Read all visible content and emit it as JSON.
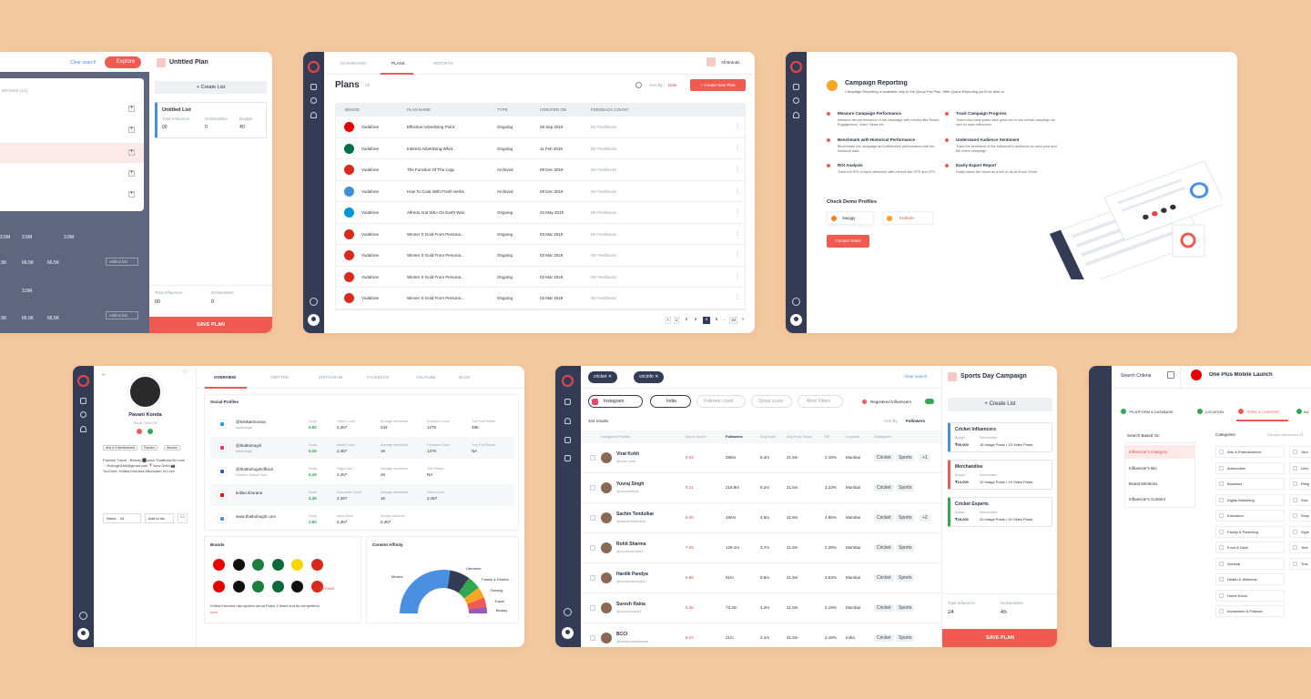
{
  "colors": {
    "bg": "#f5c9a0",
    "accent": "#f05a50",
    "sidebar": "#343b55",
    "green": "#2fa84f"
  },
  "card1": {
    "clear": "Clear search",
    "explore": "Explore",
    "plan_title": "Untitled Plan",
    "create_list": "+ Create List",
    "brands_header": "BRANDS (12)",
    "list": {
      "name": "Untitled List",
      "l1": "Total Influencer",
      "l2": "Deliverables",
      "l3": "Budget",
      "v1": "00",
      "v2": "0",
      "v3": "₹0"
    },
    "stats": {
      "a": "3.5M",
      "b": "3.5M",
      "c": "3.5M",
      "d": "3.5M",
      "e": ".5K",
      "f": "66.5K",
      "g": "66.5K",
      "h": ".5K",
      "i": "66.5K",
      "j": "66.5K"
    },
    "addlist": "Add to list",
    "footer": {
      "l1": "Total Influencer",
      "l2": "Deliverables",
      "v1": "00",
      "v2": "0"
    },
    "save": "SAVE PLAN"
  },
  "card2": {
    "tabs": [
      "DASHBOARD",
      "PLANS",
      "REPORTS"
    ],
    "brand_select": "All Brands",
    "title": "Plans",
    "filter": "All",
    "sort_label": "Sort By :",
    "sort_value": "Date",
    "create": "+ Create New Plan",
    "headers": [
      "BRAND",
      "PLAN NAME",
      "TYPE",
      "CREATED ON",
      "FEEDBACK COUNT"
    ],
    "rows": [
      {
        "brand": "Vodafone",
        "plan": "Effective Advertising Point",
        "type": "Ongoing",
        "date": "08 Sep 2019",
        "fb": "06 Feedbacks",
        "logo": "#e60000"
      },
      {
        "brand": "Vodafone",
        "plan": "Interest Advertising What...",
        "type": "Ongoing",
        "date": "11 Feb 2019",
        "fb": "06 Feedbacks",
        "logo": "#00704a"
      },
      {
        "brand": "Vodafone",
        "plan": "The Function Of The Logo",
        "type": "Archived",
        "date": "09 Dec 2019",
        "fb": "06 Feedbacks",
        "logo": "#da291c"
      },
      {
        "brand": "Vodafone",
        "plan": "How To Cook With Fresh Herbs",
        "type": "Archived",
        "date": "09 Dec 2019",
        "fb": "06 Feedbacks",
        "logo": "#3d8fd8"
      },
      {
        "brand": "Vodafone",
        "plan": "Alfredo And Who On Earth Was",
        "type": "Ongoing",
        "date": "22 May 2019",
        "fb": "06 Feedbacks",
        "logo": "#0096d6"
      },
      {
        "brand": "Vodafone",
        "plan": "Winner S Gold From Persona...",
        "type": "Ongoing",
        "date": "03 Mar 2019",
        "fb": "06 Feedbacks",
        "logo": "#da291c"
      },
      {
        "brand": "Vodafone",
        "plan": "Winner S Gold From Persona...",
        "type": "Ongoing",
        "date": "03 Mar 2019",
        "fb": "06 Feedbacks",
        "logo": "#da291c"
      },
      {
        "brand": "Vodafone",
        "plan": "Winner S Gold From Persona...",
        "type": "Ongoing",
        "date": "03 Mar 2019",
        "fb": "06 Feedbacks",
        "logo": "#da291c"
      },
      {
        "brand": "Vodafone",
        "plan": "Winner S Gold From Persona...",
        "type": "Ongoing",
        "date": "03 Mar 2019",
        "fb": "06 Feedbacks",
        "logo": "#da291c"
      }
    ],
    "pages": [
      "<",
      "1",
      "2",
      "3",
      "4",
      "5",
      "...",
      "10",
      ">"
    ]
  },
  "card3": {
    "title": "Campaign Reporting",
    "subtitle": "Campaign Reporting is available only in the Qoruz Pro Plan. With Qoruz Reporting you'll be able to",
    "features": [
      {
        "t": "Measure Campaign Performance",
        "d": "Measure the performance of the campaign with metrics like Reach, Engagement, Video Views etc"
      },
      {
        "t": "Track Campaign Progress",
        "d": "Track how many posts have gone live in the overall campaign as well for each influencer"
      },
      {
        "t": "Benchmark with Historical Performance",
        "d": "Benchmark the campaign and influencers performance with the historical data"
      },
      {
        "t": "Understand Audience Sentiment",
        "d": "Track the sentiment of the influencer's audience on each post and the entire campaign"
      },
      {
        "t": "ROI Analysis",
        "d": "Track the ROI of each influencer with metrics like CPE and CPV"
      },
      {
        "t": "Easily Export Report",
        "d": "Easily share the report as a link or as an Excel Sheet"
      }
    ],
    "demo": "Check Demo Profiles",
    "p1": "Swiggy",
    "p2": "Kurkure",
    "contact": "Contact Sales"
  },
  "card4": {
    "name": "Pavani Konda",
    "loc": "Surat, Delhi IN",
    "chips": [
      "Arts & Entertainment",
      "Fashion",
      "Women"
    ],
    "bio": "Fashion Travel - Beauty ⬛www.ThatBohoGirl.com ✉️Bohogirl1fall@gmail.com 📍New Delhi 📷YouTube: Kritika Khurana #Bohofam In Love",
    "notes": "Notes",
    "notes_count": "34",
    "addlist": "Add to list",
    "tabs": [
      "OVERVIEW",
      "TWITTER",
      "INSTAGRAM",
      "FACEBOOK",
      "YOUTUBE",
      "BLOG"
    ],
    "social_title": "Social Profiles",
    "profiles": [
      {
        "net": "twitter",
        "h": "@kritikakhurana",
        "s": "thatbohogirl",
        "l1": "Score",
        "v1": "6.82",
        "l2": "Tweet Count",
        "v2": "2,467",
        "l3": "Average Interaction",
        "v3": "234",
        "l4": "Followers Count",
        "v4": "127K",
        "l5": "True Post Reach",
        "v5": "48K"
      },
      {
        "net": "instagram",
        "h": "@thatbohogirl",
        "s": "thatbohogirl",
        "l1": "Score",
        "v1": "6.25",
        "l2": "Media Count",
        "v2": "2,467",
        "l3": "Average Interaction",
        "v3": "1K",
        "l4": "Followers Count",
        "v4": "127K",
        "l5": "True Post Reach",
        "v5": "NA"
      },
      {
        "net": "facebook",
        "h": "@thatbohogirlofficial",
        "s": "Reliance Mutual Fund",
        "l1": "Score",
        "v1": "6.25",
        "l2": "Page Likes",
        "v2": "2,467",
        "l3": "Average Interaction",
        "v3": "2K",
        "l4": "True Reach",
        "v4": "NA",
        "l5": "",
        "v5": ""
      },
      {
        "net": "youtube",
        "h": "kritika khurana",
        "s": "",
        "l1": "Score",
        "v1": "4.35",
        "l2": "Subscriber Count",
        "v2": "2,467",
        "l3": "Average Interaction",
        "v3": "1K",
        "l4": "Video Count",
        "v4": "2,467",
        "l5": "",
        "v5": ""
      },
      {
        "net": "blog",
        "h": "www.thatbohogirl.com",
        "s": "",
        "l1": "Score",
        "v1": "2.80",
        "l2": "Alexa Rank",
        "v2": "2,467",
        "l3": "Domain Authority",
        "v3": "2,467",
        "l4": "",
        "v4": "",
        "l5": "",
        "v5": ""
      }
    ],
    "brands_title": "Brands",
    "more": "+ 36 more",
    "brand_note": "Kritika Khurana has spoken about Pepsi 3 times and its competitors",
    "brand_note_link": "here",
    "affinity_title": "Content Affinity",
    "chart_data": {
      "type": "pie",
      "title": "Content Affinity",
      "categories": [
        "Movies",
        "Literature",
        "Family & Parenti...",
        "Gaming",
        "Travel",
        "Beauty"
      ],
      "values": [
        55,
        15,
        10,
        8,
        7,
        5
      ]
    }
  },
  "card5": {
    "chips": [
      "cricket",
      "cricinfo"
    ],
    "clear": "Clear search",
    "platform": "Instagram",
    "country": "India",
    "f1": "Follower count",
    "f2": "Qoruz score",
    "f3": "More Filters",
    "reg": "Registered Influencers",
    "results": "104 results",
    "sort_label": "Sort By",
    "sort_value": "Followers",
    "headers": [
      "Instagram Profiles",
      "Qoruz Score",
      "Followers",
      "Avg Likes",
      "Avg Post Views",
      "ER",
      "Location",
      "Categories"
    ],
    "rows": [
      {
        "n": "Virat Kohli",
        "h": "@virat.kohli",
        "s": "9.04",
        "f": "286m",
        "l": "5.4m",
        "v": "21.5m",
        "e": "2.19%",
        "loc": "Mumbai",
        "c1": "Cricket",
        "c2": "Sports",
        "more": "+1"
      },
      {
        "n": "Yuvraj Singh",
        "h": "@yuvisofficial",
        "s": "9.21",
        "f": "218.9m",
        "l": "9.2m",
        "v": "21.5m",
        "e": "3.23%",
        "loc": "Mumbai",
        "c1": "Cricket",
        "c2": "Sports",
        "more": ""
      },
      {
        "n": "Sachin Tendulkar",
        "h": "@sachintendulkar",
        "s": "8.35",
        "f": "184m",
        "l": "4.6m",
        "v": "21.5m",
        "e": "4.86%",
        "loc": "Mumbai",
        "c1": "Cricket",
        "c2": "Sports",
        "more": "+2"
      },
      {
        "n": "Rohit Sharma",
        "h": "@rohitsharma45",
        "s": "7.25",
        "f": "129.1m",
        "l": "3.7m",
        "v": "21.5m",
        "e": "2.28%",
        "loc": "Mumbai",
        "c1": "Cricket",
        "c2": "Sports",
        "more": ""
      },
      {
        "n": "Hardik Pandya",
        "h": "@hardikpandya93",
        "s": "6.80",
        "f": "51m",
        "l": "5.6m",
        "v": "21.5m",
        "e": "3.63%",
        "loc": "Mumbai",
        "c1": "Cricket",
        "c2": "Sports",
        "more": ""
      },
      {
        "n": "Suresh Raina",
        "h": "@sureshraina3",
        "s": "5.38",
        "f": "73.3m",
        "l": "4.2m",
        "v": "21.5m",
        "e": "2.19%",
        "loc": "Mumbai",
        "c1": "Cricket",
        "c2": "Sports",
        "more": ""
      },
      {
        "n": "BCCI",
        "h": "@indiancricketteam",
        "s": "8.27",
        "f": "21m",
        "l": "2.1m",
        "v": "21.5m",
        "e": "2.19%",
        "loc": "India",
        "c1": "Cricket",
        "c2": "Sports",
        "more": ""
      }
    ],
    "plan_title": "Sports Day Campaign",
    "create": "+ Create List",
    "lists": [
      {
        "name": "Cricket Influencers",
        "budget": "₹90,000",
        "del": "15 Image Posts  •  15 Video Posts",
        "color": "#4a90e2"
      },
      {
        "name": "Merchandise",
        "budget": "₹10,000",
        "del": "10 Image Posts  •  10 Video Posts",
        "color": "#f05a50"
      },
      {
        "name": "Cricket Experts",
        "budget": "₹25,000",
        "del": "20 Image Posts  •  20 Video Posts",
        "color": "#2fa84f"
      }
    ],
    "budget_label": "Budget",
    "del_label": "Deliverables",
    "footer": {
      "l1": "Total Influencer",
      "l2": "Deliverables",
      "v1": "24",
      "v2": "45"
    },
    "save": "SAVE PLAN"
  },
  "card6": {
    "search": "Search Criteria",
    "plan": "One Plus Mobile Launch",
    "tabs": [
      "*PLATFORM & DATABASE",
      "LOCATION",
      "TOPIC & CONTENT",
      "AU"
    ],
    "based": "Search Based On",
    "opts": [
      "Influencer's Category",
      "Influencer's Bio",
      "Brand Mentions",
      "Influencer's Content"
    ],
    "cat_label": "Categories",
    "choose": "Choose Influencers Fr",
    "cats": [
      "Arts & Entertainment",
      "Automotive",
      "Business",
      "Digital Marketing",
      "Education",
      "Family & Parenting",
      "Food & Drink",
      "General",
      "Health & Wellness",
      "Home Decor",
      "Investment & Finance"
    ],
    "cats2": [
      "Jour",
      "Lifes",
      "Relig",
      "Scie",
      "Shop",
      "Style",
      "Tech",
      "Trav"
    ]
  }
}
